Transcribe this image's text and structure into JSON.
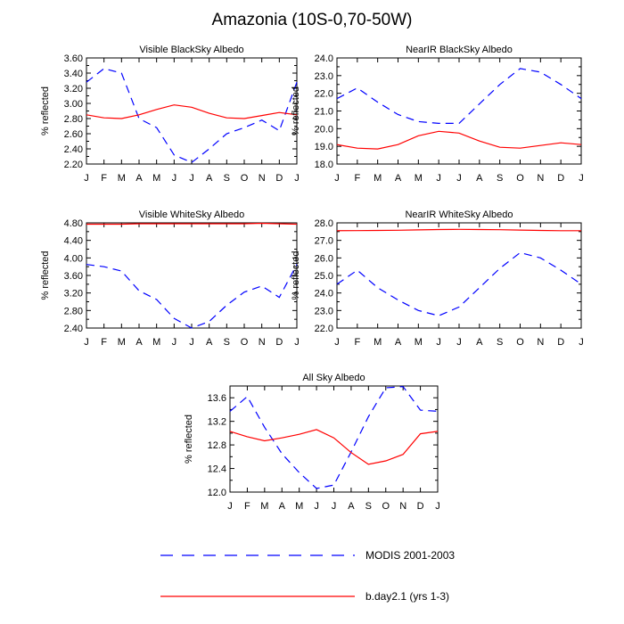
{
  "figure": {
    "title": "Amazonia (10S-0,70-50W)"
  },
  "colors": {
    "modis": "#0000ff",
    "model": "#ff0000",
    "axis": "#000000"
  },
  "legend": {
    "placement": "bottom-center"
  },
  "chart_data": [
    {
      "type": "line",
      "title": "Visible BlackSky Albedo",
      "ylabel": "% reflected",
      "categories": [
        "J",
        "F",
        "M",
        "A",
        "M",
        "J",
        "J",
        "A",
        "S",
        "O",
        "N",
        "D",
        "J"
      ],
      "ylim": [
        2.2,
        3.6
      ],
      "yticks": [
        2.2,
        2.4,
        2.6,
        2.8,
        3.0,
        3.2,
        3.4,
        3.6
      ],
      "ytick_labels": [
        "2.20",
        "2.40",
        "2.60",
        "2.80",
        "3.00",
        "3.20",
        "3.40",
        "3.60"
      ],
      "series": [
        {
          "name": "MODIS 2001-2003",
          "values": [
            3.28,
            3.46,
            3.4,
            2.8,
            2.68,
            2.32,
            2.22,
            2.4,
            2.6,
            2.68,
            2.78,
            2.64,
            3.28
          ]
        },
        {
          "name": "b.day2.1 (yrs 1-3)",
          "values": [
            2.85,
            2.81,
            2.8,
            2.85,
            2.92,
            2.98,
            2.95,
            2.87,
            2.81,
            2.8,
            2.84,
            2.88,
            2.85
          ]
        }
      ]
    },
    {
      "type": "line",
      "title": "NearIR BlackSky Albedo",
      "ylabel": "% reflected",
      "categories": [
        "J",
        "F",
        "M",
        "A",
        "M",
        "J",
        "J",
        "A",
        "S",
        "O",
        "N",
        "D",
        "J"
      ],
      "ylim": [
        18.0,
        24.0
      ],
      "yticks": [
        18,
        19,
        20,
        21,
        22,
        23,
        24
      ],
      "ytick_labels": [
        "18.0",
        "19.0",
        "20.0",
        "21.0",
        "22.0",
        "23.0",
        "24.0"
      ],
      "series": [
        {
          "name": "MODIS 2001-2003",
          "values": [
            21.7,
            22.3,
            21.5,
            20.8,
            20.4,
            20.3,
            20.3,
            21.4,
            22.5,
            23.4,
            23.2,
            22.5,
            21.7
          ]
        },
        {
          "name": "b.day2.1 (yrs 1-3)",
          "values": [
            19.1,
            18.9,
            18.85,
            19.1,
            19.6,
            19.85,
            19.75,
            19.3,
            18.95,
            18.9,
            19.05,
            19.2,
            19.1
          ]
        }
      ]
    },
    {
      "type": "line",
      "title": "Visible WhiteSky Albedo",
      "ylabel": "% reflected",
      "categories": [
        "J",
        "F",
        "M",
        "A",
        "M",
        "J",
        "J",
        "A",
        "S",
        "O",
        "N",
        "D",
        "J"
      ],
      "ylim": [
        2.4,
        4.8
      ],
      "yticks": [
        2.4,
        2.8,
        3.2,
        3.6,
        4.0,
        4.4,
        4.8
      ],
      "ytick_labels": [
        "2.40",
        "2.80",
        "3.20",
        "3.60",
        "4.00",
        "4.40",
        "4.80"
      ],
      "series": [
        {
          "name": "MODIS 2001-2003",
          "values": [
            3.85,
            3.8,
            3.7,
            3.25,
            3.05,
            2.62,
            2.4,
            2.55,
            2.92,
            3.22,
            3.36,
            3.1,
            3.85
          ]
        },
        {
          "name": "b.day2.1 (yrs 1-3)",
          "values": [
            4.77,
            4.77,
            4.77,
            4.78,
            4.78,
            4.78,
            4.78,
            4.78,
            4.78,
            4.78,
            4.79,
            4.78,
            4.77
          ]
        }
      ]
    },
    {
      "type": "line",
      "title": "NearIR WhiteSky Albedo",
      "ylabel": "% reflected",
      "categories": [
        "J",
        "F",
        "M",
        "A",
        "M",
        "J",
        "J",
        "A",
        "S",
        "O",
        "N",
        "D",
        "J"
      ],
      "ylim": [
        22.0,
        28.0
      ],
      "yticks": [
        22,
        23,
        24,
        25,
        26,
        27,
        28
      ],
      "ytick_labels": [
        "22.0",
        "23.0",
        "24.0",
        "25.0",
        "26.0",
        "27.0",
        "28.0"
      ],
      "series": [
        {
          "name": "MODIS 2001-2003",
          "values": [
            24.5,
            25.3,
            24.3,
            23.6,
            23.0,
            22.7,
            23.2,
            24.3,
            25.4,
            26.3,
            26.0,
            25.3,
            24.5
          ]
        },
        {
          "name": "b.day2.1 (yrs 1-3)",
          "values": [
            27.55,
            27.56,
            27.57,
            27.58,
            27.6,
            27.62,
            27.63,
            27.62,
            27.61,
            27.59,
            27.57,
            27.55,
            27.55
          ]
        }
      ]
    },
    {
      "type": "line",
      "title": "All Sky Albedo",
      "ylabel": "% reflected",
      "categories": [
        "J",
        "F",
        "M",
        "A",
        "M",
        "J",
        "J",
        "A",
        "S",
        "O",
        "N",
        "D",
        "J"
      ],
      "ylim": [
        12.0,
        13.8
      ],
      "yticks": [
        12.0,
        12.4,
        12.8,
        13.2,
        13.6
      ],
      "ytick_labels": [
        "12.0",
        "12.4",
        "12.8",
        "13.2",
        "13.6"
      ],
      "series": [
        {
          "name": "MODIS 2001-2003",
          "values": [
            13.37,
            13.62,
            13.1,
            12.65,
            12.33,
            12.06,
            12.12,
            12.68,
            13.28,
            13.77,
            13.79,
            13.39,
            13.37
          ]
        },
        {
          "name": "b.day2.1 (yrs 1-3)",
          "values": [
            13.03,
            12.94,
            12.87,
            12.92,
            12.98,
            13.06,
            12.92,
            12.67,
            12.47,
            12.53,
            12.64,
            12.99,
            13.03
          ]
        }
      ]
    }
  ]
}
